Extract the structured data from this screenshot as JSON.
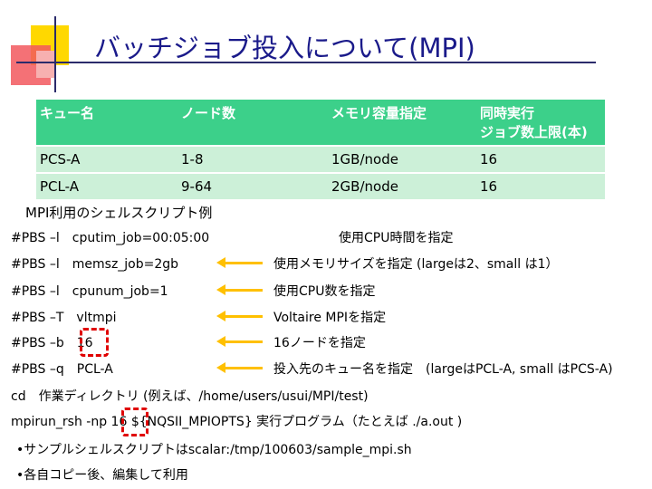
{
  "title": "バッチジョブ投入について(MPI)",
  "table": {
    "headers": [
      "キュー名",
      "ノード数",
      "メモリ容量指定",
      "同時実行\nジョブ数上限(本)"
    ],
    "header_line1": "同時実行",
    "header_line2": "ジョブ数上限(本)",
    "rows": [
      [
        "PCS-A",
        "1-8",
        "1GB/node",
        "16"
      ],
      [
        "PCL-A",
        "9-64",
        "2GB/node",
        "16"
      ]
    ]
  },
  "caption": "MPI利用のシェルスクリプト例",
  "script_lines": [
    {
      "cmd": "#PBS –l　cputim_job=00:05:00",
      "note": "使用CPU時間を指定"
    },
    {
      "cmd": "#PBS –l　memsz_job=2gb",
      "note": "使用メモリサイズを指定 (largeは2、small は1）"
    },
    {
      "cmd": "#PBS –l　cpunum_job=1",
      "note": "使用CPU数を指定"
    },
    {
      "cmd": "#PBS –T　vltmpi",
      "note": "Voltaire MPIを指定"
    },
    {
      "cmd": "#PBS –b　16",
      "note": "16ノードを指定"
    },
    {
      "cmd": "#PBS –q　PCL-A",
      "note": "投入先のキュー名を指定　(largeはPCL-A, small はPCS-A)"
    }
  ],
  "cd_line": "cd　作業ディレクトリ (例えば、/home/users/usui/MPI/test)",
  "mpirun_line": "mpirun_rsh -np 16 ${NQSII_MPIOPTS} 実行プログラム（たとえば ./a.out )",
  "bullets": [
    "•サンプルシェルスクリプトはscalar:/tmp/100603/sample_mpi.sh",
    "•各自コピー後、編集して利用"
  ],
  "colors": {
    "title": "#1a1a8a",
    "table_header": "#3cd08a",
    "table_row": "#ccf0d8",
    "arrow": "#ffc000",
    "highlight": "#e00000"
  }
}
